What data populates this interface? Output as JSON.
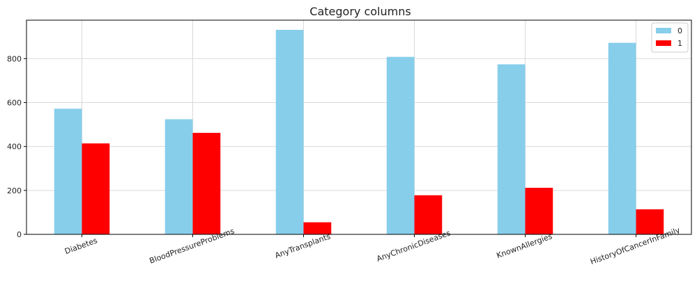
{
  "chart_data": {
    "type": "bar",
    "title": "Category columns",
    "xlabel": "",
    "ylabel": "",
    "categories": [
      "Diabetes",
      "BloodPressureProblems",
      "AnyTransplants",
      "AnyChronicDiseases",
      "KnownAllergies",
      "HistoryOfCancerInFamily"
    ],
    "series": [
      {
        "name": "0",
        "color": "#87ceeb",
        "values": [
          572,
          524,
          931,
          808,
          774,
          872
        ]
      },
      {
        "name": "1",
        "color": "#ff0000",
        "values": [
          414,
          462,
          55,
          178,
          212,
          114
        ]
      }
    ],
    "ylim": [
      0,
      975
    ],
    "yticks": [
      0,
      200,
      400,
      600,
      800
    ],
    "grid": true,
    "legend_position": "top-right"
  }
}
